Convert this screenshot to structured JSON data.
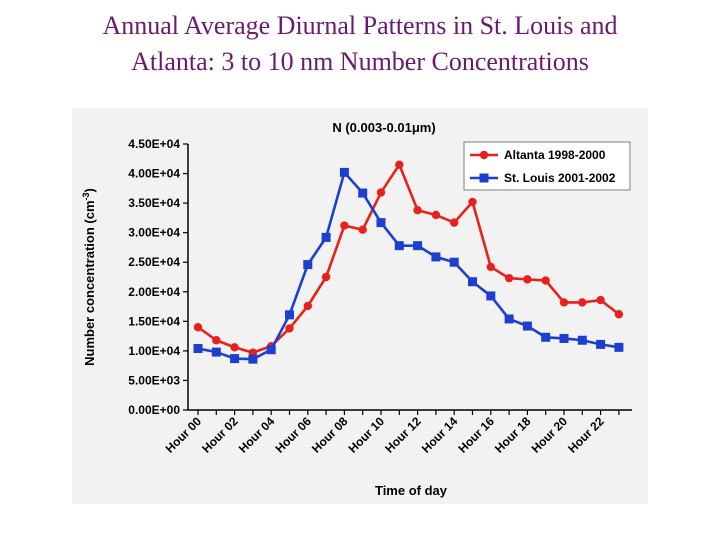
{
  "slide": {
    "title_line1": "Annual Average Diurnal Patterns in St. Louis and",
    "title_line2": "Atlanta: 3 to 10 nm Number Concentrations"
  },
  "chart_data": {
    "type": "line",
    "title": "N (0.003-0.01μm)",
    "xlabel": "Time of day",
    "ylabel": "Number concentration (cm",
    "ylabel_sup": "-3",
    "ylabel_close": ")",
    "ylim": [
      0,
      45000
    ],
    "yticks": [
      0,
      5000,
      10000,
      15000,
      20000,
      25000,
      30000,
      35000,
      40000,
      45000
    ],
    "ytick_labels": [
      "0.00E+00",
      "5.00E+03",
      "1.00E+04",
      "1.50E+04",
      "2.00E+04",
      "2.50E+04",
      "3.00E+04",
      "3.50E+04",
      "4.00E+04",
      "4.50E+04"
    ],
    "x": [
      0,
      1,
      2,
      3,
      4,
      5,
      6,
      7,
      8,
      9,
      10,
      11,
      12,
      13,
      14,
      15,
      16,
      17,
      18,
      19,
      20,
      21,
      22,
      23
    ],
    "xtick_positions": [
      0,
      2,
      4,
      6,
      8,
      10,
      12,
      14,
      16,
      18,
      20,
      22
    ],
    "xtick_labels": [
      "Hour 00",
      "Hour 02",
      "Hour 04",
      "Hour 06",
      "Hour 08",
      "Hour 10",
      "Hour 12",
      "Hour 14",
      "Hour 16",
      "Hour 18",
      "Hour 20",
      "Hour 22"
    ],
    "grid": false,
    "legend_position": "top-right",
    "series": [
      {
        "name": "Altanta 1998-2000",
        "color": "#e8211d",
        "marker": "circle",
        "values": [
          14000,
          11800,
          10600,
          9700,
          10800,
          13800,
          17600,
          22500,
          31200,
          30500,
          36800,
          41500,
          33800,
          33000,
          31700,
          35200,
          24200,
          22300,
          22100,
          21900,
          18200,
          18200,
          18600,
          16200
        ]
      },
      {
        "name": "St. Louis 2001-2002",
        "color": "#1c3fd0",
        "marker": "square",
        "values": [
          10400,
          9800,
          8700,
          8600,
          10200,
          16100,
          24600,
          29200,
          40200,
          36700,
          31700,
          27800,
          27800,
          25900,
          25000,
          21700,
          19300,
          15400,
          14200,
          12300,
          12100,
          11800,
          11100,
          10600
        ]
      }
    ]
  }
}
